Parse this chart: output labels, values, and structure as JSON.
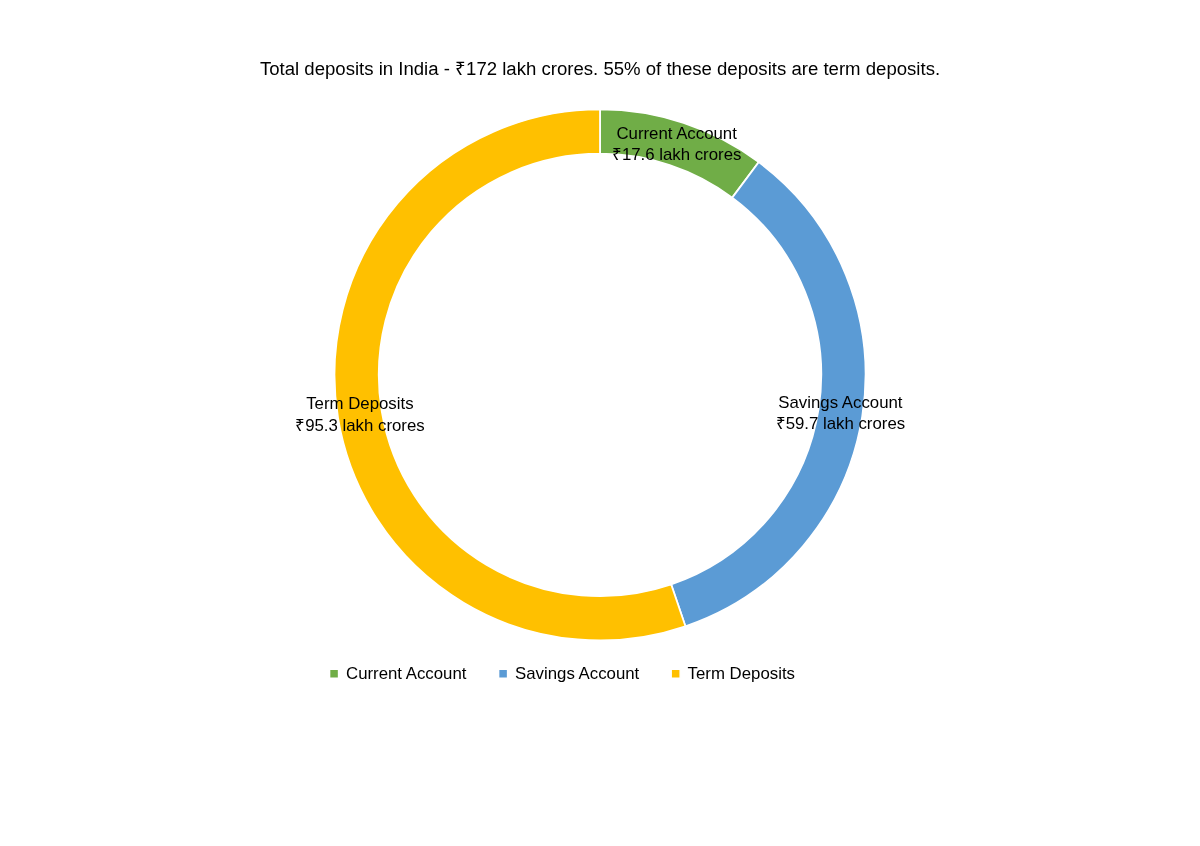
{
  "chart_data": {
    "type": "donut",
    "title": "Total deposits in India -  ₹172 lakh crores. 55% of these deposits are term deposits.",
    "categories": [
      "Current Account",
      "Savings Account",
      "Term Deposits"
    ],
    "values": [
      17.6,
      59.7,
      95.3
    ],
    "colors": [
      "#70ad47",
      "#5b9bd5",
      "#ffc000"
    ],
    "value_labels": [
      "₹17.6 lakh crores",
      "₹59.7 lakh crores",
      "₹95.3 lakh crores"
    ],
    "legend": "bottom"
  }
}
